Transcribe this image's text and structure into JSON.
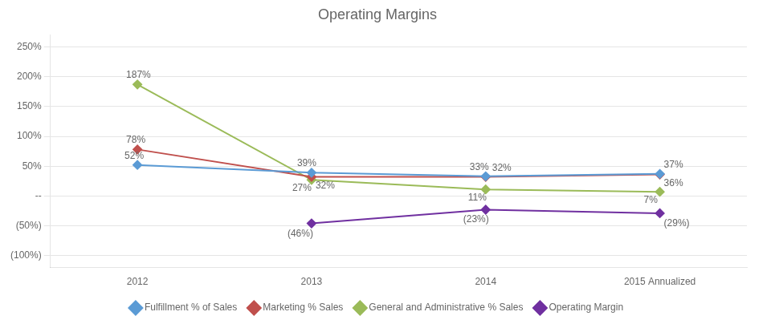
{
  "chart_data": {
    "type": "line",
    "title": "Operating Margins",
    "categories": [
      "2012",
      "2013",
      "2014",
      "2015 Annualized"
    ],
    "series": [
      {
        "name": "Fulfillment % of Sales",
        "color": "#5B9BD5",
        "marker": "diamond",
        "values": [
          52,
          39,
          33,
          37
        ],
        "value_labels": [
          "52%",
          "39%",
          "33%",
          "37%"
        ]
      },
      {
        "name": "Marketing % Sales",
        "color": "#C0504D",
        "marker": "diamond",
        "values": [
          78,
          32,
          32,
          36
        ],
        "value_labels": [
          "78%",
          "32%",
          "32%",
          "36%"
        ]
      },
      {
        "name": "General and Administrative % Sales",
        "color": "#9BBB59",
        "marker": "diamond",
        "values": [
          187,
          27,
          11,
          7
        ],
        "value_labels": [
          "187%",
          "27%",
          "11%",
          "7%"
        ]
      },
      {
        "name": "Operating Margin",
        "color": "#7030A0",
        "marker": "diamond",
        "values": [
          null,
          -46,
          -23,
          -29
        ],
        "value_labels": [
          null,
          "(46%)",
          "(23%)",
          "(29%)"
        ]
      }
    ],
    "ylim": [
      -120,
      270
    ],
    "yticks": [
      {
        "value": -100,
        "label": "(100%)"
      },
      {
        "value": -50,
        "label": "(50%)"
      },
      {
        "value": 0,
        "label": "--"
      },
      {
        "value": 50,
        "label": "50%"
      },
      {
        "value": 100,
        "label": "100%"
      },
      {
        "value": 150,
        "label": "150%"
      },
      {
        "value": 200,
        "label": "200%"
      },
      {
        "value": 250,
        "label": "250%"
      }
    ],
    "grid": "y",
    "legend": "bottom",
    "data_labels": true
  }
}
